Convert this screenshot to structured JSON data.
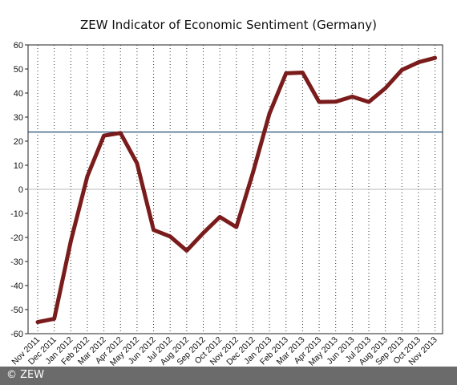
{
  "chart_data": {
    "type": "line",
    "title": "ZEW Indicator of Economic Sentiment (Germany)",
    "xlabel": "",
    "ylabel": "",
    "ylim": [
      -60,
      60
    ],
    "yticks": [
      60,
      50,
      40,
      30,
      20,
      10,
      0,
      -10,
      -20,
      -30,
      -40,
      -50,
      -60
    ],
    "grid": "vertical dotted",
    "categories": [
      "Nov 2011",
      "Dec 2011",
      "Jan 2012",
      "Feb 2012",
      "Mar 2012",
      "Apr 2012",
      "May 2012",
      "Jun 2012",
      "Jul 2012",
      "Aug 2012",
      "Sep 2012",
      "Oct 2012",
      "Nov 2012",
      "Dec 2012",
      "Jan 2013",
      "Feb 2013",
      "Mar 2013",
      "Apr 2013",
      "May 2013",
      "Jun 2013",
      "Jul 2013",
      "Aug 2013",
      "Sep 2013",
      "Oct 2013",
      "Nov 2013"
    ],
    "series": [
      {
        "values": [
          -55.2,
          -53.8,
          -21.6,
          5.4,
          22.3,
          23.4,
          10.8,
          -16.9,
          -19.6,
          -25.5,
          -18.2,
          -11.5,
          -15.7,
          6.9,
          31.5,
          48.2,
          48.5,
          36.3,
          36.4,
          38.5,
          36.3,
          42.0,
          49.6,
          52.8,
          54.6
        ],
        "color": "#7a1c1c"
      }
    ],
    "reference_line": {
      "value": 23.8,
      "color": "#1f4e79"
    }
  },
  "credit": "© ZEW"
}
